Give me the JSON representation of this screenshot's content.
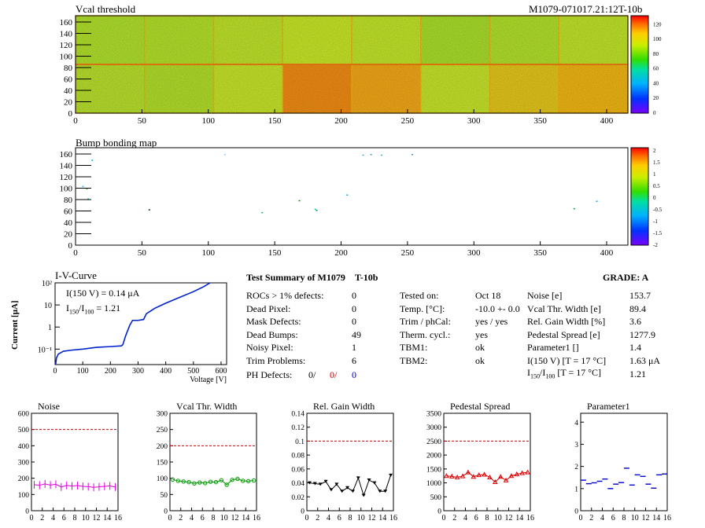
{
  "header": {
    "left_title": "Vcal threshold",
    "right_title": "M1079-071017.21:12T-10b"
  },
  "maps": {
    "vcal": {
      "x_ticks": [
        "0",
        "50",
        "100",
        "150",
        "200",
        "250",
        "300",
        "350",
        "400"
      ],
      "y_ticks": [
        "0",
        "20",
        "40",
        "60",
        "80",
        "100",
        "120",
        "140",
        "160"
      ],
      "scale_labels": [
        "0",
        "20",
        "40",
        "60",
        "80",
        "100",
        "120"
      ]
    },
    "bump": {
      "title": "Bump bonding map",
      "x_ticks": [
        "0",
        "50",
        "100",
        "150",
        "200",
        "250",
        "300",
        "350",
        "400"
      ],
      "y_ticks": [
        "0",
        "20",
        "40",
        "60",
        "80",
        "100",
        "120",
        "140",
        "160"
      ],
      "scale_labels": [
        "-2",
        "-1.5",
        "-1",
        "-0.5",
        "0",
        "0.5",
        "1",
        "1.5",
        "2"
      ]
    }
  },
  "iv": {
    "title": "I-V-Curve",
    "ylabel": "Current [μA]",
    "xlabel": "Voltage [V]",
    "annot1": "I(150 V) = 0.14 μA",
    "annot2_pre": "I",
    "annot2_sub1": "150",
    "annot2_mid": "/I",
    "annot2_sub2": "100",
    "annot2_post": " =  1.21",
    "x_ticks": [
      "0",
      "100",
      "200",
      "300",
      "400",
      "500",
      "600"
    ],
    "y_ticks": [
      "10⁻¹",
      "1",
      "10",
      "10²"
    ]
  },
  "summary": {
    "title": "Test Summary of M1079",
    "module_type": "T-10b",
    "grade": "GRADE:  A",
    "col1": [
      {
        "label": "ROCs > 1% defects:",
        "value": "0"
      },
      {
        "label": "Dead Pixel:",
        "value": "0"
      },
      {
        "label": "Mask Defects:",
        "value": "0"
      },
      {
        "label": "Dead Bumps:",
        "value": "49"
      },
      {
        "label": "Noisy Pixel:",
        "value": "1"
      },
      {
        "label": "Trim Problems:",
        "value": "6"
      }
    ],
    "ph_defects": {
      "label": "PH Defects:",
      "v1": "0/",
      "v2": "0/",
      "v3": "0"
    },
    "col2": [
      {
        "label": "Tested on:",
        "value": "Oct 18"
      },
      {
        "label": "Temp. [°C]:",
        "value": "-10.0 +- 0.0"
      },
      {
        "label": "Trim / phCal:",
        "value": "yes / yes"
      },
      {
        "label": "Therm. cycl.:",
        "value": "yes"
      },
      {
        "label": "TBM1:",
        "value": "ok"
      },
      {
        "label": "TBM2:",
        "value": "ok"
      }
    ],
    "col3": [
      {
        "label": "Noise [e]",
        "value": "153.7"
      },
      {
        "label": "Vcal Thr. Width [e]",
        "value": "89.4"
      },
      {
        "label": "Rel. Gain Width [%]",
        "value": "3.6"
      },
      {
        "label": "Pedestal Spread [e]",
        "value": "1277.9"
      },
      {
        "label": "Parameter1 []",
        "value": "1.4"
      },
      {
        "label": "I(150 V) [T = 17 °C]",
        "value": "1.63 μA"
      }
    ],
    "col3_last": {
      "pre": "I",
      "sub1": "150",
      "mid": "/I",
      "sub2": "100",
      "post": "  [T = 17 °C]",
      "value": "1.21"
    }
  },
  "colors": {
    "iv_line": "#0022cc",
    "noise": "#dd00dd",
    "vcal": "#009900",
    "gain": "#000000",
    "pedestal": "#dd0000",
    "param": "#0000cc",
    "limit": "#cc0000"
  },
  "chart_data": [
    {
      "type": "scatter",
      "title": "Noise",
      "x": [
        0,
        1,
        2,
        3,
        4,
        5,
        6,
        7,
        8,
        9,
        10,
        11,
        12,
        13,
        14,
        15
      ],
      "values": [
        160,
        157,
        165,
        158,
        163,
        146,
        156,
        152,
        155,
        150,
        148,
        144,
        147,
        150,
        153,
        146
      ],
      "ylim": [
        0,
        600
      ],
      "limit": 500,
      "x_ticks": [
        "0",
        "2",
        "4",
        "6",
        "8",
        "10",
        "12",
        "14",
        "16"
      ],
      "y_ticks": [
        "0",
        "100",
        "200",
        "300",
        "400",
        "500",
        "600"
      ]
    },
    {
      "type": "line",
      "title": "Vcal Thr. Width",
      "x": [
        0,
        1,
        2,
        3,
        4,
        5,
        6,
        7,
        8,
        9,
        10,
        11,
        12,
        13,
        14,
        15
      ],
      "values": [
        96,
        92,
        90,
        88,
        84,
        87,
        85,
        89,
        88,
        94,
        80,
        95,
        98,
        92,
        91,
        93
      ],
      "ylim": [
        0,
        300
      ],
      "limit": 200,
      "x_ticks": [
        "0",
        "2",
        "4",
        "6",
        "8",
        "10",
        "12",
        "14",
        "16"
      ],
      "y_ticks": [
        "0",
        "50",
        "100",
        "150",
        "200",
        "250",
        "300"
      ]
    },
    {
      "type": "line",
      "title": "Rel. Gain Width",
      "x": [
        0,
        1,
        2,
        3,
        4,
        5,
        6,
        7,
        8,
        9,
        10,
        11,
        12,
        13,
        14,
        15
      ],
      "values": [
        0.04,
        0.039,
        0.038,
        0.042,
        0.03,
        0.038,
        0.028,
        0.033,
        0.028,
        0.047,
        0.022,
        0.044,
        0.04,
        0.028,
        0.028,
        0.051
      ],
      "ylim": [
        0,
        0.14
      ],
      "limit": 0.1,
      "x_ticks": [
        "0",
        "2",
        "4",
        "6",
        "8",
        "10",
        "12",
        "14",
        "16"
      ],
      "y_ticks": [
        "0",
        "0.02",
        "0.04",
        "0.06",
        "0.08",
        "0.1",
        "0.12",
        "0.14"
      ]
    },
    {
      "type": "line",
      "title": "Pedestal Spread",
      "x": [
        0,
        1,
        2,
        3,
        4,
        5,
        6,
        7,
        8,
        9,
        10,
        11,
        12,
        13,
        14,
        15
      ],
      "values": [
        1250,
        1230,
        1200,
        1240,
        1380,
        1220,
        1280,
        1300,
        1200,
        1030,
        1220,
        1090,
        1250,
        1310,
        1350,
        1380
      ],
      "ylim": [
        0,
        3500
      ],
      "limit": 2500,
      "x_ticks": [
        "0",
        "2",
        "4",
        "6",
        "8",
        "10",
        "12",
        "14",
        "16"
      ],
      "y_ticks": [
        "0",
        "500",
        "1000",
        "1500",
        "2000",
        "2500",
        "3000",
        "3500"
      ]
    },
    {
      "type": "scatter",
      "title": "Parameter1",
      "x": [
        0,
        1,
        2,
        3,
        4,
        5,
        6,
        7,
        8,
        9,
        10,
        11,
        12,
        13,
        14,
        15
      ],
      "values": [
        1.38,
        1.22,
        1.26,
        1.33,
        1.43,
        1.0,
        1.2,
        1.27,
        1.92,
        1.16,
        1.62,
        1.55,
        1.2,
        1.02,
        1.62,
        1.66
      ],
      "ylim": [
        0,
        4.4
      ],
      "x_ticks": [
        "0",
        "2",
        "4",
        "6",
        "8",
        "10",
        "12",
        "14",
        "16"
      ],
      "y_ticks": [
        "0",
        "1",
        "2",
        "3",
        "4"
      ]
    }
  ]
}
